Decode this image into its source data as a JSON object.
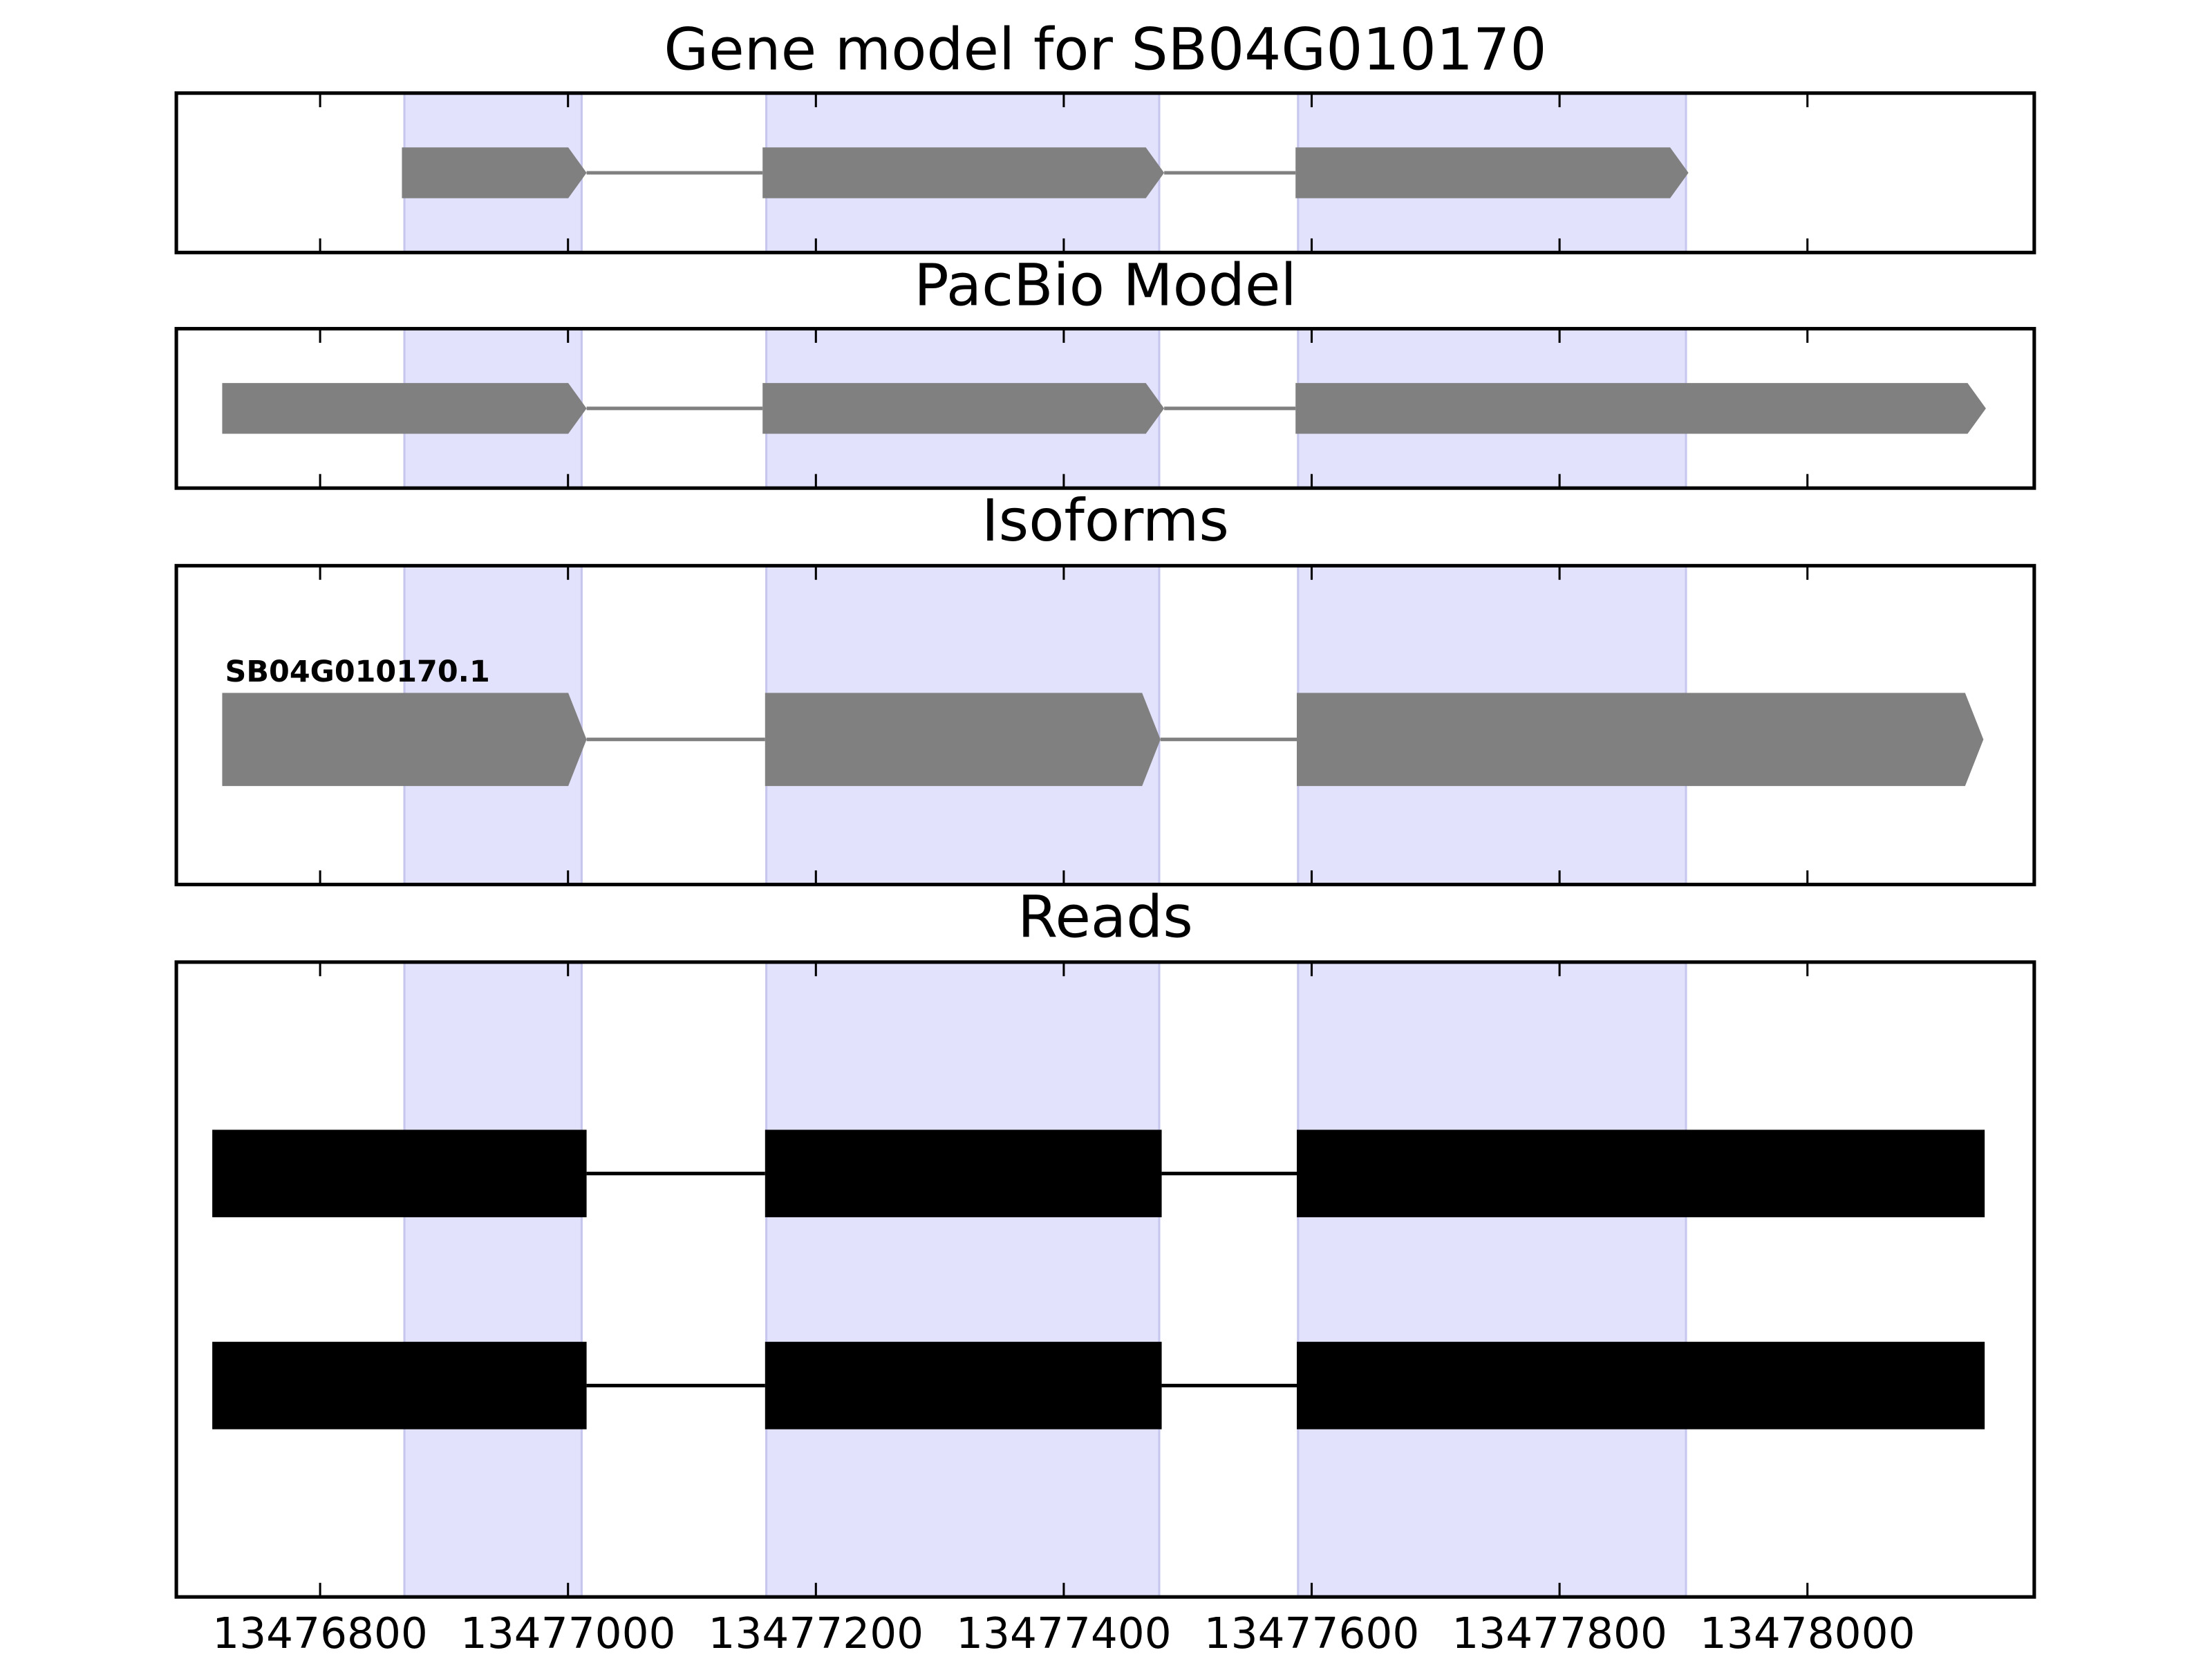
{
  "chart_data": [
    {
      "type": "gene",
      "title": "Gene model for SB04G010170",
      "style": "arrow",
      "color": "#808080",
      "highlight_color": "#e2e2fc",
      "xlim": [
        13476684,
        13478183
      ],
      "xticks": [
        13476800,
        13477000,
        13477200,
        13477400,
        13477600,
        13477800,
        13478000
      ],
      "highlights": [
        [
          13476868,
          13477011
        ],
        [
          13477160,
          13477477
        ],
        [
          13477589,
          13477902
        ]
      ],
      "tracks": [
        {
          "exons": [
            [
              13476866,
              13477015
            ],
            [
              13477157,
              13477481
            ],
            [
              13477587,
              13477904
            ]
          ]
        }
      ]
    },
    {
      "type": "gene",
      "title": "PacBio Model",
      "style": "arrow",
      "color": "#808080",
      "highlight_color": "#e2e2fc",
      "xlim": [
        13476684,
        13478183
      ],
      "xticks": [
        13476800,
        13477000,
        13477200,
        13477400,
        13477600,
        13477800,
        13478000
      ],
      "highlights": [
        [
          13476868,
          13477011
        ],
        [
          13477160,
          13477477
        ],
        [
          13477589,
          13477902
        ]
      ],
      "tracks": [
        {
          "exons": [
            [
              13476721,
              13477015
            ],
            [
              13477157,
              13477481
            ],
            [
              13477587,
              13478144
            ]
          ]
        }
      ]
    },
    {
      "type": "gene",
      "title": "Isoforms",
      "style": "arrow",
      "color": "#808080",
      "highlight_color": "#e2e2fc",
      "xlim": [
        13476684,
        13478183
      ],
      "xticks": [
        13476800,
        13477000,
        13477200,
        13477400,
        13477600,
        13477800,
        13478000
      ],
      "highlights": [
        [
          13476868,
          13477011
        ],
        [
          13477160,
          13477477
        ],
        [
          13477589,
          13477902
        ]
      ],
      "tracks": [
        {
          "name": "SB04G010170.1",
          "exons": [
            [
              13476721,
              13477015
            ],
            [
              13477159,
              13477478
            ],
            [
              13477588,
              13478142
            ]
          ]
        }
      ]
    },
    {
      "type": "gene",
      "title": "Reads",
      "style": "block",
      "color": "#000000",
      "highlight_color": "#e2e2fc",
      "xlim": [
        13476684,
        13478183
      ],
      "xticks": [
        13476800,
        13477000,
        13477200,
        13477400,
        13477600,
        13477800,
        13478000
      ],
      "highlights": [
        [
          13476868,
          13477011
        ],
        [
          13477160,
          13477477
        ],
        [
          13477589,
          13477902
        ]
      ],
      "tracks": [
        {
          "exons": [
            [
              13476713,
              13477015
            ],
            [
              13477159,
              13477479
            ],
            [
              13477588,
              13478143
            ]
          ]
        },
        {
          "exons": [
            [
              13476713,
              13477015
            ],
            [
              13477159,
              13477479
            ],
            [
              13477588,
              13478143
            ]
          ]
        }
      ]
    }
  ]
}
